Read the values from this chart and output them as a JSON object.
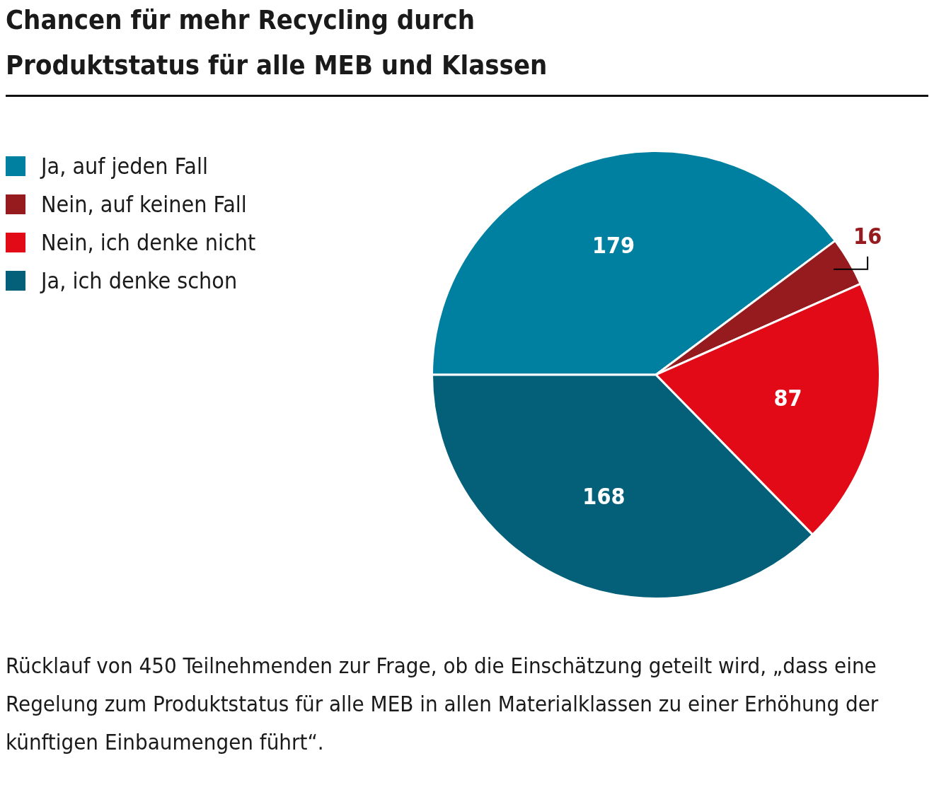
{
  "chart_data": {
    "type": "pie",
    "title": "Chancen für mehr Recycling durch Produktstatus für alle MEB und Klassen",
    "categories": [
      "Ja, auf jeden Fall",
      "Nein, auf keinen Fall",
      "Nein, ich denke nicht",
      "Ja, ich denke schon"
    ],
    "values": [
      179,
      16,
      87,
      168
    ],
    "colors": [
      "#0080a0",
      "#951b1e",
      "#e30a17",
      "#036078"
    ],
    "data_labels": true,
    "legend": "top left",
    "annotations": [
      "Rücklauf von 450 Teilnehmenden zur Frage, ob die Einschätzung geteilt wird, „dass eine Regelung zum Produktstatus für alle MEB in allen Materialklassen zu einer Erhöhung der künftigen Einbaumengen führt“."
    ]
  }
}
